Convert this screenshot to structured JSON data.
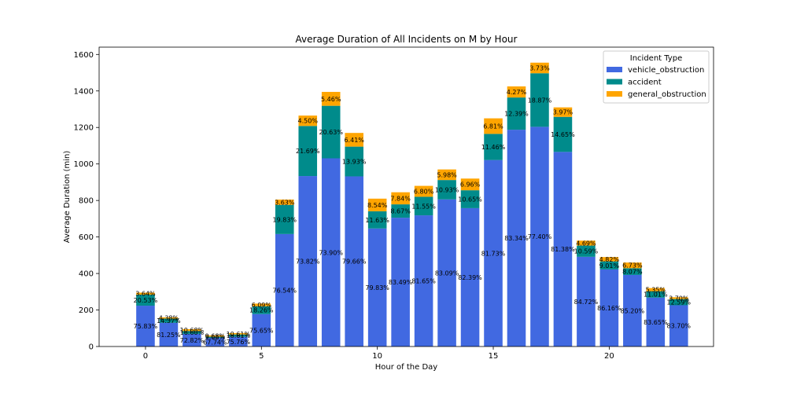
{
  "chart_data": {
    "type": "bar",
    "stacked": true,
    "title": "Average Duration of All Incidents on M by Hour",
    "xlabel": "Hour of the Day",
    "ylabel": "Average Duration (min)",
    "xlim": [
      -2,
      24.5
    ],
    "ylim": [
      0,
      1640
    ],
    "xticks": [
      0,
      5,
      10,
      15,
      20
    ],
    "yticks": [
      0,
      200,
      400,
      600,
      800,
      1000,
      1200,
      1400,
      1600
    ],
    "legend": {
      "title": "Incident Type",
      "position": "top-right"
    },
    "x": [
      0,
      1,
      2,
      3,
      4,
      5,
      6,
      7,
      8,
      9,
      10,
      11,
      12,
      13,
      14,
      15,
      16,
      17,
      18,
      19,
      20,
      21,
      22,
      23
    ],
    "totals": [
      295,
      160,
      95,
      70,
      70,
      235,
      805,
      1265,
      1395,
      1170,
      810,
      845,
      880,
      970,
      920,
      1250,
      1425,
      1555,
      1310,
      580,
      490,
      460,
      320,
      270
    ],
    "series": [
      {
        "name": "vehicle_obstruction",
        "color": "#4169e1",
        "percent_labels": [
          "75.83%",
          "81.25%",
          "72.82%",
          "67.74%",
          "75.76%",
          "75.65%",
          "76.54%",
          "73.82%",
          "73.90%",
          "79.66%",
          "79.83%",
          "83.49%",
          "81.65%",
          "83.09%",
          "82.39%",
          "81.73%",
          "83.34%",
          "77.40%",
          "81.38%",
          "84.72%",
          "86.16%",
          "85.20%",
          "83.65%",
          "83.70%"
        ]
      },
      {
        "name": "accident",
        "color": "#008b8b",
        "percent_labels": [
          "20.53%",
          "14.37%",
          "16.60%",
          "9.68%",
          "18.61%",
          "18.26%",
          "19.83%",
          "21.69%",
          "20.63%",
          "13.93%",
          "11.63%",
          "8.67%",
          "11.55%",
          "10.93%",
          "10.65%",
          "11.46%",
          "12.39%",
          "18.87%",
          "14.65%",
          "10.59%",
          "9.01%",
          "8.07%",
          "11.01%",
          "12.59%"
        ]
      },
      {
        "name": "general_obstruction",
        "color": "#ffa500",
        "percent_labels": [
          "3.64%",
          "4.38%",
          "10.68%",
          "9.68%",
          "10.61%",
          "6.09%",
          "3.63%",
          "4.50%",
          "5.46%",
          "6.41%",
          "8.54%",
          "7.84%",
          "6.80%",
          "5.98%",
          "6.96%",
          "6.81%",
          "4.27%",
          "3.73%",
          "3.97%",
          "4.69%",
          "4.82%",
          "6.73%",
          "5.35%",
          "3.70%"
        ]
      }
    ]
  }
}
